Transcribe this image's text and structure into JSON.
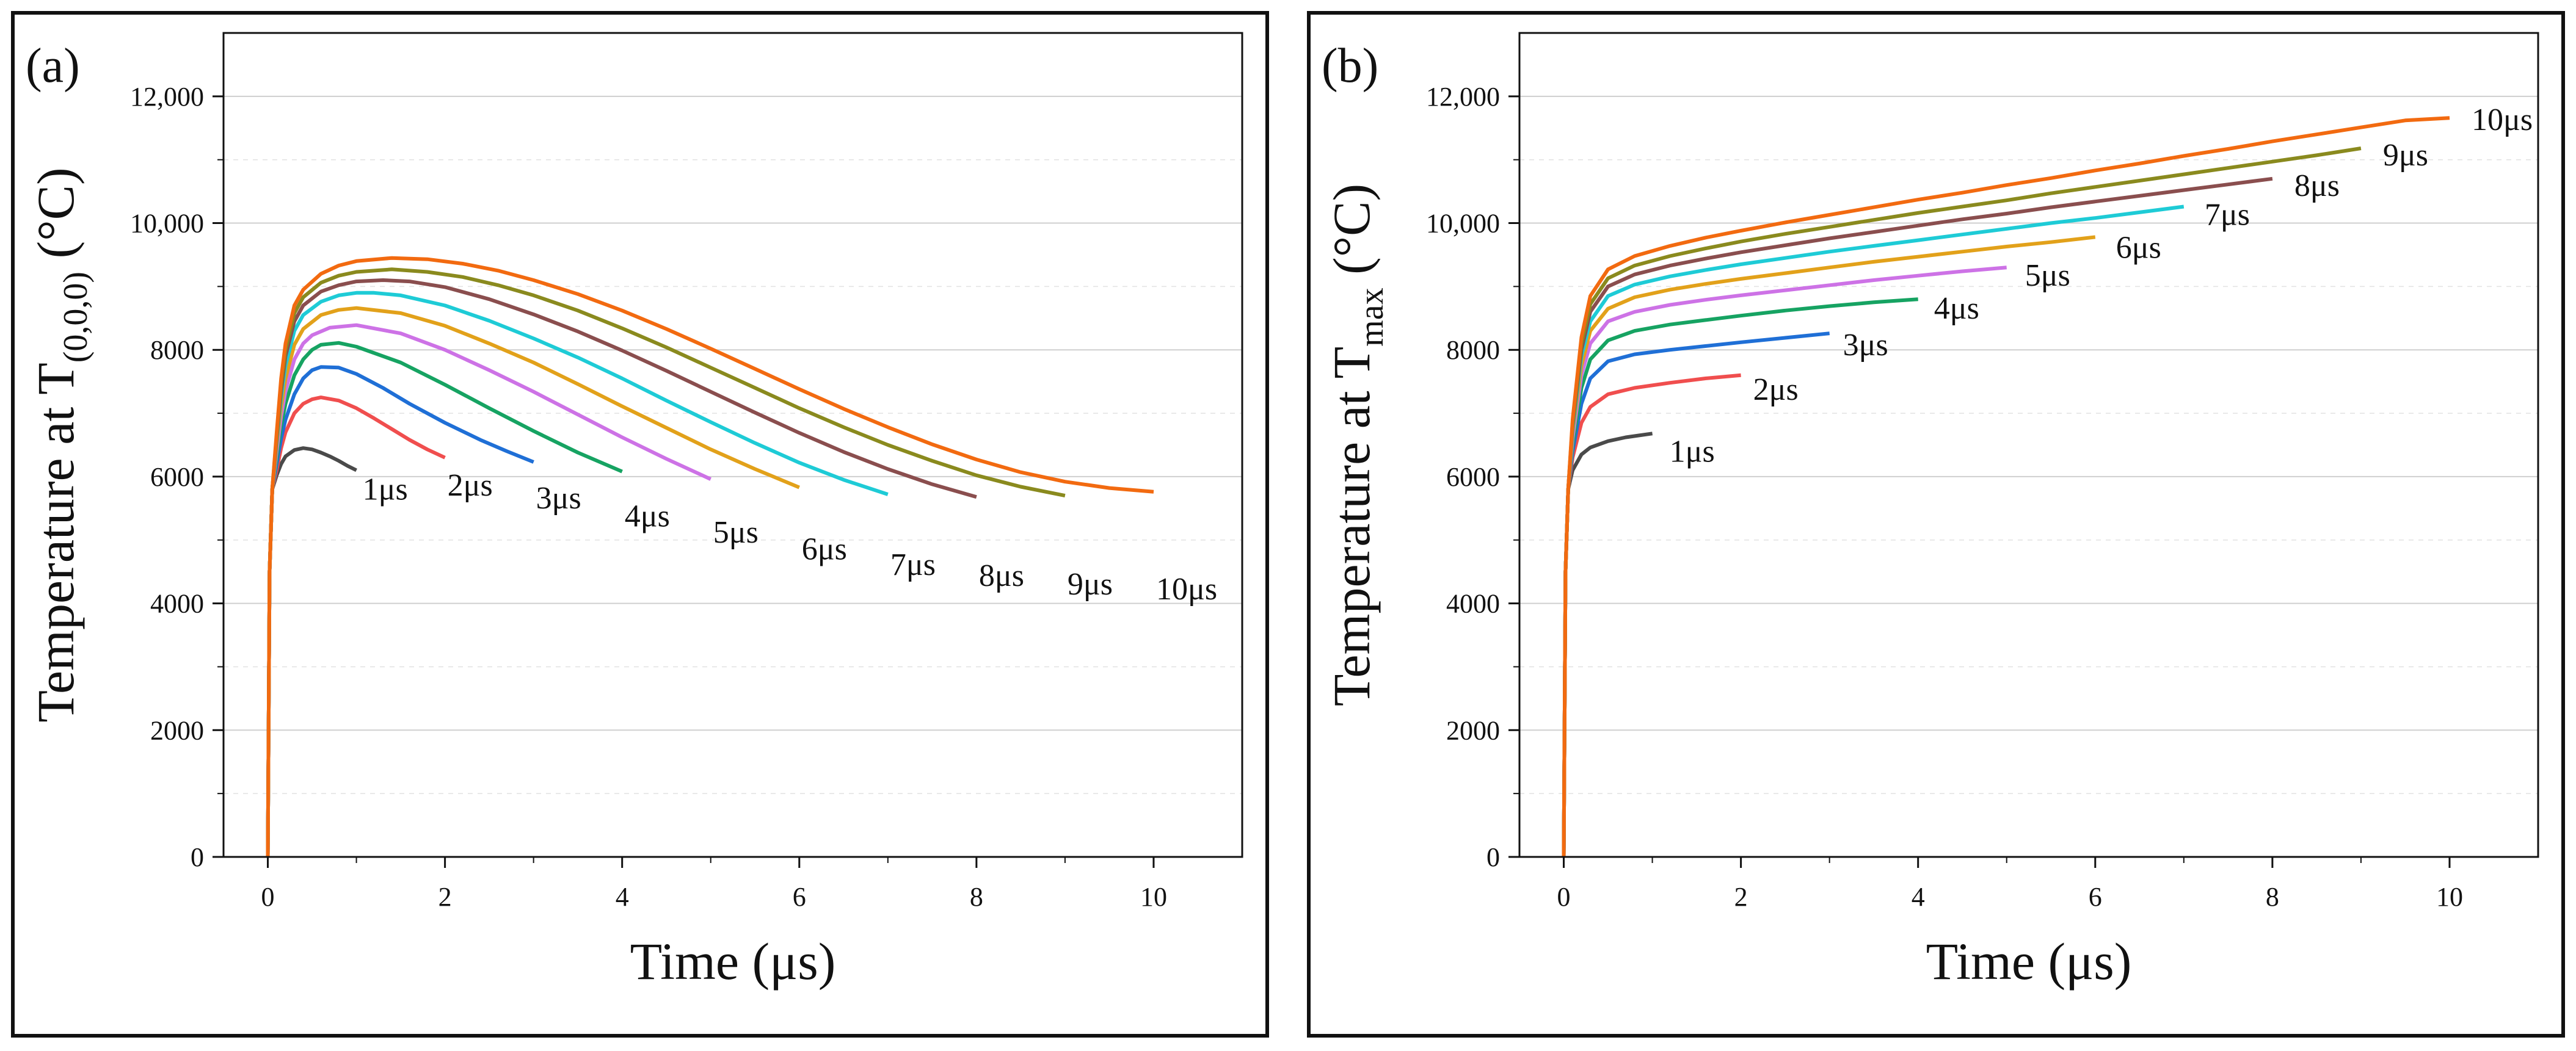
{
  "chart_data": [
    {
      "type": "line",
      "panel_label": "(a)",
      "ylabel_main": "Temperature at T",
      "ylabel_sub": "(0,0,0)",
      "ylabel_end": " (°C)",
      "xlabel": "Time (μs)",
      "xlim": [
        -0.5,
        11.0
      ],
      "ylim": [
        0,
        13000
      ],
      "x_ticks": [
        0,
        2,
        4,
        6,
        8,
        10
      ],
      "x_tick_labels": [
        "0",
        "2",
        "4",
        "6",
        "8",
        "10"
      ],
      "y_ticks": [
        0,
        2000,
        4000,
        6000,
        8000,
        10000,
        12000
      ],
      "y_tick_labels": [
        "0",
        "2000",
        "4000",
        "6000",
        "8000",
        "10,000",
        "12,000"
      ],
      "grid": "horizontal",
      "series": [
        {
          "name": "1μs",
          "color": "#4a4a4a",
          "x": [
            0,
            0.02,
            0.05,
            0.1,
            0.15,
            0.2,
            0.3,
            0.4,
            0.5,
            0.6,
            0.7,
            0.8,
            0.9,
            1.0
          ],
          "y": [
            0,
            4500,
            5800,
            6020,
            6200,
            6320,
            6420,
            6450,
            6430,
            6380,
            6320,
            6250,
            6170,
            6100
          ]
        },
        {
          "name": "2μs",
          "color": "#f04e4e",
          "x": [
            0,
            0.02,
            0.05,
            0.1,
            0.15,
            0.2,
            0.3,
            0.4,
            0.5,
            0.6,
            0.8,
            1.0,
            1.2,
            1.4,
            1.6,
            1.8,
            2.0
          ],
          "y": [
            0,
            4500,
            5800,
            6100,
            6450,
            6700,
            7000,
            7150,
            7220,
            7250,
            7200,
            7080,
            6920,
            6750,
            6580,
            6430,
            6300
          ]
        },
        {
          "name": "3μs",
          "color": "#1f6fd6",
          "x": [
            0,
            0.02,
            0.05,
            0.1,
            0.15,
            0.2,
            0.3,
            0.4,
            0.5,
            0.6,
            0.8,
            1.0,
            1.3,
            1.6,
            2.0,
            2.4,
            2.7,
            3.0
          ],
          "y": [
            0,
            4500,
            5800,
            6200,
            6600,
            6900,
            7300,
            7550,
            7680,
            7730,
            7720,
            7620,
            7400,
            7150,
            6850,
            6580,
            6400,
            6230
          ]
        },
        {
          "name": "4μs",
          "color": "#16a362",
          "x": [
            0,
            0.02,
            0.05,
            0.1,
            0.15,
            0.2,
            0.3,
            0.4,
            0.5,
            0.6,
            0.8,
            1.0,
            1.5,
            2.0,
            2.5,
            3.0,
            3.5,
            4.0
          ],
          "y": [
            0,
            4500,
            5800,
            6300,
            6800,
            7150,
            7600,
            7850,
            8000,
            8080,
            8110,
            8050,
            7800,
            7450,
            7080,
            6720,
            6380,
            6080
          ]
        },
        {
          "name": "5μs",
          "color": "#cd72e6",
          "x": [
            0,
            0.02,
            0.05,
            0.1,
            0.15,
            0.2,
            0.3,
            0.4,
            0.5,
            0.7,
            1.0,
            1.5,
            2.0,
            2.5,
            3.0,
            3.5,
            4.0,
            4.5,
            5.0
          ],
          "y": [
            0,
            4500,
            5800,
            6400,
            6950,
            7350,
            7850,
            8100,
            8230,
            8350,
            8390,
            8260,
            8000,
            7680,
            7340,
            6980,
            6620,
            6280,
            5960
          ]
        },
        {
          "name": "6μs",
          "color": "#e2a11a",
          "x": [
            0,
            0.02,
            0.05,
            0.1,
            0.15,
            0.2,
            0.3,
            0.4,
            0.6,
            0.8,
            1.0,
            1.5,
            2.0,
            2.5,
            3.0,
            3.5,
            4.0,
            4.5,
            5.0,
            5.5,
            6.0
          ],
          "y": [
            0,
            4500,
            5800,
            6500,
            7100,
            7550,
            8080,
            8330,
            8550,
            8630,
            8660,
            8580,
            8380,
            8100,
            7800,
            7460,
            7110,
            6770,
            6430,
            6120,
            5830
          ]
        },
        {
          "name": "7μs",
          "color": "#1ecbd6",
          "x": [
            0,
            0.02,
            0.05,
            0.1,
            0.15,
            0.2,
            0.3,
            0.4,
            0.6,
            0.8,
            1.0,
            1.2,
            1.5,
            2.0,
            2.5,
            3.0,
            3.5,
            4.0,
            4.5,
            5.0,
            5.5,
            6.0,
            6.5,
            7.0
          ],
          "y": [
            0,
            4500,
            5800,
            6550,
            7250,
            7750,
            8300,
            8550,
            8760,
            8860,
            8900,
            8900,
            8860,
            8700,
            8460,
            8180,
            7880,
            7550,
            7200,
            6860,
            6530,
            6220,
            5950,
            5720
          ]
        },
        {
          "name": "8μs",
          "color": "#8a4e4e",
          "x": [
            0,
            0.02,
            0.05,
            0.1,
            0.15,
            0.2,
            0.3,
            0.4,
            0.6,
            0.8,
            1.0,
            1.3,
            1.6,
            2.0,
            2.5,
            3.0,
            3.5,
            4.0,
            4.5,
            5.0,
            5.5,
            6.0,
            6.5,
            7.0,
            7.5,
            8.0
          ],
          "y": [
            0,
            4500,
            5800,
            6600,
            7350,
            7900,
            8450,
            8700,
            8920,
            9020,
            9080,
            9100,
            9080,
            8990,
            8800,
            8560,
            8290,
            7990,
            7670,
            7340,
            7010,
            6690,
            6390,
            6120,
            5880,
            5680
          ]
        },
        {
          "name": "9μs",
          "color": "#8a8a1e",
          "x": [
            0,
            0.02,
            0.05,
            0.1,
            0.15,
            0.2,
            0.3,
            0.4,
            0.6,
            0.8,
            1.0,
            1.4,
            1.8,
            2.2,
            2.6,
            3.0,
            3.5,
            4.0,
            4.5,
            5.0,
            5.5,
            6.0,
            6.5,
            7.0,
            7.5,
            8.0,
            8.5,
            9.0
          ],
          "y": [
            0,
            4500,
            5800,
            6650,
            7450,
            8000,
            8580,
            8830,
            9060,
            9170,
            9230,
            9270,
            9230,
            9150,
            9020,
            8860,
            8620,
            8340,
            8040,
            7720,
            7400,
            7080,
            6780,
            6500,
            6250,
            6020,
            5840,
            5700
          ]
        },
        {
          "name": "10μs",
          "color": "#f26a10",
          "x": [
            0,
            0.02,
            0.05,
            0.1,
            0.15,
            0.2,
            0.3,
            0.4,
            0.6,
            0.8,
            1.0,
            1.4,
            1.8,
            2.2,
            2.6,
            3.0,
            3.5,
            4.0,
            4.5,
            5.0,
            5.5,
            6.0,
            6.5,
            7.0,
            7.5,
            8.0,
            8.5,
            9.0,
            9.5,
            10.0
          ],
          "y": [
            0,
            4500,
            5800,
            6700,
            7550,
            8100,
            8700,
            8950,
            9200,
            9330,
            9400,
            9450,
            9430,
            9360,
            9250,
            9100,
            8880,
            8620,
            8330,
            8020,
            7700,
            7380,
            7070,
            6780,
            6510,
            6270,
            6070,
            5920,
            5820,
            5760
          ]
        }
      ]
    },
    {
      "type": "line",
      "panel_label": "(b)",
      "ylabel_main": "Temperature at T",
      "ylabel_sub": "max",
      "ylabel_end": " (°C)",
      "xlabel": "Time (μs)",
      "xlim": [
        -0.5,
        11.0
      ],
      "ylim": [
        0,
        13000
      ],
      "x_ticks": [
        0,
        2,
        4,
        6,
        8,
        10
      ],
      "x_tick_labels": [
        "0",
        "2",
        "4",
        "6",
        "8",
        "10"
      ],
      "y_ticks": [
        0,
        2000,
        4000,
        6000,
        8000,
        10000,
        12000
      ],
      "y_tick_labels": [
        "0",
        "2000",
        "4000",
        "6000",
        "8000",
        "10,000",
        "12,000"
      ],
      "grid": "horizontal",
      "series": [
        {
          "name": "1μs",
          "color": "#4a4a4a",
          "x": [
            0,
            0.02,
            0.05,
            0.1,
            0.2,
            0.3,
            0.5,
            0.7,
            1.0
          ],
          "y": [
            0,
            4500,
            5800,
            6100,
            6350,
            6460,
            6560,
            6620,
            6680
          ]
        },
        {
          "name": "2μs",
          "color": "#f04e4e",
          "x": [
            0,
            0.02,
            0.05,
            0.1,
            0.2,
            0.3,
            0.5,
            0.8,
            1.2,
            1.6,
            2.0
          ],
          "y": [
            0,
            4500,
            5800,
            6300,
            6850,
            7100,
            7300,
            7400,
            7480,
            7550,
            7600
          ]
        },
        {
          "name": "3μs",
          "color": "#1f6fd6",
          "x": [
            0,
            0.02,
            0.05,
            0.1,
            0.2,
            0.3,
            0.5,
            0.8,
            1.2,
            1.6,
            2.0,
            2.5,
            3.0
          ],
          "y": [
            0,
            4500,
            5800,
            6400,
            7150,
            7550,
            7820,
            7930,
            8000,
            8060,
            8120,
            8190,
            8260
          ]
        },
        {
          "name": "4μs",
          "color": "#16a362",
          "x": [
            0,
            0.02,
            0.05,
            0.1,
            0.2,
            0.3,
            0.5,
            0.8,
            1.2,
            1.6,
            2.0,
            2.5,
            3.0,
            3.5,
            4.0
          ],
          "y": [
            0,
            4500,
            5800,
            6500,
            7400,
            7850,
            8150,
            8300,
            8400,
            8470,
            8540,
            8620,
            8690,
            8750,
            8800
          ]
        },
        {
          "name": "5μs",
          "color": "#cd72e6",
          "x": [
            0,
            0.02,
            0.05,
            0.1,
            0.2,
            0.3,
            0.5,
            0.8,
            1.2,
            1.6,
            2.0,
            2.5,
            3.0,
            3.5,
            4.0,
            4.5,
            5.0
          ],
          "y": [
            0,
            4500,
            5800,
            6600,
            7600,
            8100,
            8450,
            8600,
            8710,
            8790,
            8860,
            8940,
            9020,
            9100,
            9170,
            9240,
            9300
          ]
        },
        {
          "name": "6μs",
          "color": "#e2a11a",
          "x": [
            0,
            0.02,
            0.05,
            0.1,
            0.2,
            0.3,
            0.5,
            0.8,
            1.2,
            1.6,
            2.0,
            2.5,
            3.0,
            3.5,
            4.0,
            4.5,
            5.0,
            5.5,
            6.0
          ],
          "y": [
            0,
            4500,
            5800,
            6700,
            7750,
            8300,
            8650,
            8830,
            8950,
            9040,
            9120,
            9210,
            9300,
            9390,
            9470,
            9550,
            9630,
            9700,
            9780
          ]
        },
        {
          "name": "7μs",
          "color": "#1ecbd6",
          "x": [
            0,
            0.02,
            0.05,
            0.1,
            0.2,
            0.3,
            0.5,
            0.8,
            1.2,
            1.6,
            2.0,
            2.5,
            3.0,
            3.5,
            4.0,
            4.5,
            5.0,
            5.5,
            6.0,
            6.5,
            7.0
          ],
          "y": [
            0,
            4500,
            5800,
            6750,
            7900,
            8450,
            8850,
            9030,
            9160,
            9260,
            9350,
            9450,
            9550,
            9640,
            9730,
            9820,
            9910,
            10000,
            10080,
            10170,
            10260
          ]
        },
        {
          "name": "8μs",
          "color": "#8a4e4e",
          "x": [
            0,
            0.02,
            0.05,
            0.1,
            0.2,
            0.3,
            0.5,
            0.8,
            1.2,
            1.6,
            2.0,
            2.5,
            3.0,
            3.5,
            4.0,
            4.5,
            5.0,
            5.5,
            6.0,
            6.5,
            7.0,
            7.5,
            8.0
          ],
          "y": [
            0,
            4500,
            5800,
            6800,
            8000,
            8600,
            9000,
            9190,
            9330,
            9440,
            9540,
            9650,
            9760,
            9860,
            9960,
            10060,
            10150,
            10250,
            10340,
            10430,
            10520,
            10610,
            10700
          ]
        },
        {
          "name": "9μs",
          "color": "#8a8a1e",
          "x": [
            0,
            0.02,
            0.05,
            0.1,
            0.2,
            0.3,
            0.5,
            0.8,
            1.2,
            1.6,
            2.0,
            2.5,
            3.0,
            3.5,
            4.0,
            4.5,
            5.0,
            5.5,
            6.0,
            6.5,
            7.0,
            7.5,
            8.0,
            8.5,
            9.0
          ],
          "y": [
            0,
            4500,
            5800,
            6850,
            8100,
            8720,
            9130,
            9330,
            9480,
            9600,
            9710,
            9830,
            9940,
            10050,
            10160,
            10260,
            10360,
            10470,
            10570,
            10670,
            10770,
            10870,
            10970,
            11070,
            11180
          ]
        },
        {
          "name": "10μs",
          "color": "#f26a10",
          "x": [
            0,
            0.02,
            0.05,
            0.1,
            0.2,
            0.3,
            0.5,
            0.8,
            1.2,
            1.6,
            2.0,
            2.5,
            3.0,
            3.5,
            4.0,
            4.5,
            5.0,
            5.5,
            6.0,
            6.5,
            7.0,
            7.5,
            8.0,
            8.5,
            9.0,
            9.5,
            10.0
          ],
          "y": [
            0,
            4500,
            5800,
            6900,
            8200,
            8850,
            9270,
            9480,
            9640,
            9770,
            9880,
            10010,
            10130,
            10250,
            10370,
            10480,
            10600,
            10710,
            10830,
            10940,
            11060,
            11170,
            11290,
            11400,
            11510,
            11620,
            11660
          ]
        }
      ]
    }
  ]
}
